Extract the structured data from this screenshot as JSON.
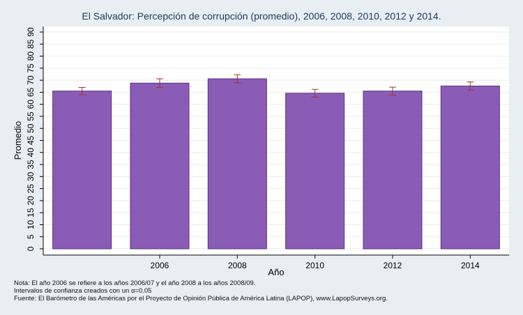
{
  "chart_data": {
    "type": "bar",
    "title": "El Salvador: Percepción de corrupción (promedio), 2006, 2008, 2010, 2012 y 2014.",
    "xlabel": "Año",
    "ylabel": "Promedio",
    "categories": [
      "",
      "2006",
      "2008",
      "2010",
      "2012",
      "2014"
    ],
    "values": [
      65.5,
      68.8,
      70.6,
      64.6,
      65.5,
      67.6
    ],
    "ci": [
      [
        64.0,
        67.0
      ],
      [
        67.0,
        70.6
      ],
      [
        68.9,
        72.3
      ],
      [
        63.0,
        66.2
      ],
      [
        63.9,
        67.1
      ],
      [
        65.9,
        69.3
      ]
    ],
    "ylim": [
      0,
      90
    ],
    "yticks": [
      0,
      5,
      10,
      15,
      20,
      25,
      30,
      35,
      40,
      45,
      50,
      55,
      60,
      65,
      70,
      75,
      80,
      85,
      90
    ],
    "grid": true,
    "colors": {
      "bar": "#8b5cb5",
      "bar_edge": "#5b2d86",
      "error_bar": "#a0302f",
      "plot_bg": "#ffffff",
      "grid": "#eaeaea"
    }
  },
  "notes": [
    "Nota: El año 2006 se refiere a los años 2006/07 y el año 2008 a los años 2008/09.",
    "Intervalos de confianza creados con un α=0.05",
    "Fuente: El Barómetro de las Américas por el Proyecto de Opinión Pública de América Latina (LAPOP), www.LapopSurveys.org."
  ]
}
